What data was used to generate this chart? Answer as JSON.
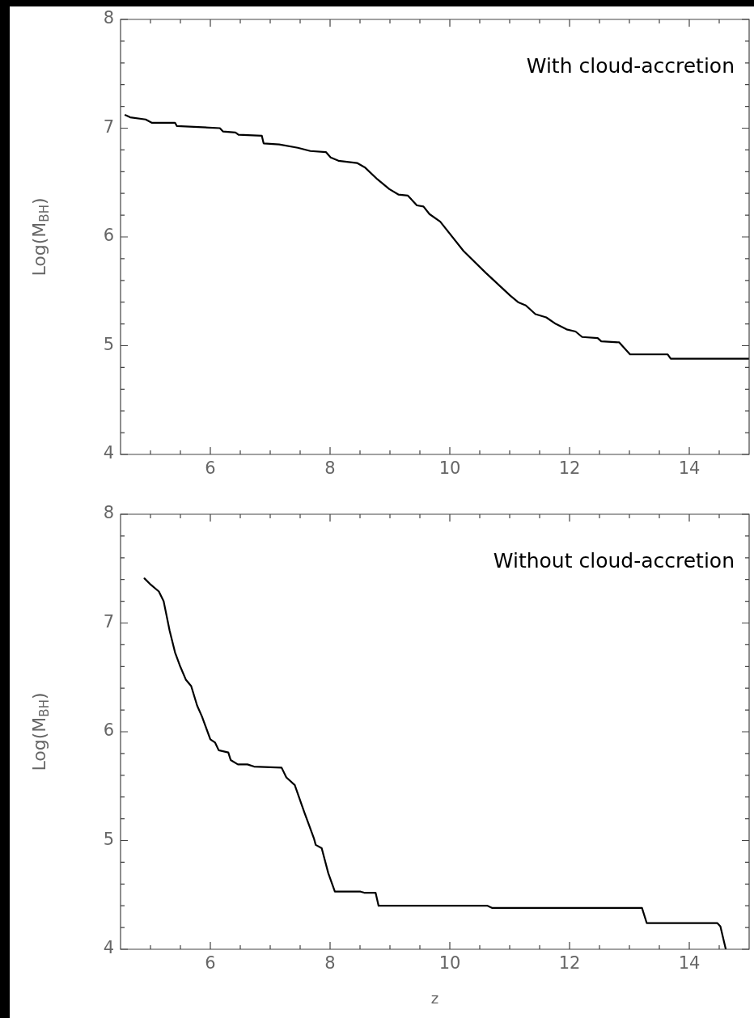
{
  "chart_data": [
    {
      "type": "line",
      "ylabel": "Log(M$_{BH}$)",
      "annotations": [
        "With cloud-accretion"
      ],
      "xlim": [
        4.5,
        15
      ],
      "ylim": [
        4,
        8
      ],
      "xticks": [
        {
          "value": 5,
          "label": null
        },
        {
          "value": 5.5,
          "label": null
        },
        6,
        {
          "value": 6.5,
          "label": null
        },
        {
          "value": 7,
          "label": null
        },
        {
          "value": 7.5,
          "label": null
        },
        8,
        {
          "value": 8.5,
          "label": null
        },
        {
          "value": 9,
          "label": null
        },
        {
          "value": 9.5,
          "label": null
        },
        10,
        {
          "value": 10.5,
          "label": null
        },
        {
          "value": 11,
          "label": null
        },
        {
          "value": 11.5,
          "label": null
        },
        12,
        {
          "value": 12.5,
          "label": null
        },
        {
          "value": 13,
          "label": null
        },
        {
          "value": 13.5,
          "label": null
        },
        14,
        {
          "value": 14.5,
          "label": null
        }
      ],
      "yticks": [
        4,
        {
          "value": 4.2,
          "label": null
        },
        {
          "value": 4.4,
          "label": null
        },
        {
          "value": 4.6,
          "label": null
        },
        {
          "value": 4.8,
          "label": null
        },
        5,
        {
          "value": 5.2,
          "label": null
        },
        {
          "value": 5.4,
          "label": null
        },
        {
          "value": 5.6,
          "label": null
        },
        {
          "value": 5.8,
          "label": null
        },
        6,
        {
          "value": 6.2,
          "label": null
        },
        {
          "value": 6.4,
          "label": null
        },
        {
          "value": 6.6,
          "label": null
        },
        {
          "value": 6.8,
          "label": null
        },
        7,
        {
          "value": 7.2,
          "label": null
        },
        {
          "value": 7.4,
          "label": null
        },
        {
          "value": 7.6,
          "label": null
        },
        {
          "value": 7.8,
          "label": null
        },
        8
      ],
      "series": [
        {
          "color": "#000000",
          "x": [
            4.58,
            4.66,
            4.92,
            5.02,
            5.41,
            5.44,
            6.16,
            6.21,
            6.42,
            6.47,
            6.86,
            6.89,
            7.15,
            7.46,
            7.67,
            7.93,
            8.01,
            8.14,
            8.45,
            8.58,
            8.79,
            8.99,
            9.14,
            9.3,
            9.45,
            9.56,
            9.66,
            9.84,
            10.23,
            10.6,
            11.01,
            11.14,
            11.27,
            11.43,
            11.61,
            11.77,
            11.95,
            12.1,
            12.21,
            12.47,
            12.53,
            12.83,
            13.01,
            13.64,
            13.69,
            15
          ],
          "values": [
            7.12,
            7.1,
            7.08,
            7.05,
            7.05,
            7.02,
            7.0,
            6.97,
            6.96,
            6.94,
            6.93,
            6.86,
            6.85,
            6.82,
            6.79,
            6.78,
            6.73,
            6.7,
            6.68,
            6.64,
            6.53,
            6.44,
            6.39,
            6.38,
            6.29,
            6.28,
            6.21,
            6.14,
            5.87,
            5.67,
            5.46,
            5.4,
            5.37,
            5.29,
            5.26,
            5.2,
            5.15,
            5.13,
            5.08,
            5.07,
            5.04,
            5.03,
            4.92,
            4.92,
            4.88,
            4.88
          ]
        }
      ],
      "grid": false,
      "legend": false,
      "marker": "none",
      "line_style": "solid"
    },
    {
      "type": "line",
      "xlabel": "z",
      "ylabel": "Log(M$_{BH}$)",
      "annotations": [
        "Without cloud-accretion"
      ],
      "xlim": [
        4.5,
        15
      ],
      "ylim": [
        4,
        8
      ],
      "xticks": [
        {
          "value": 5,
          "label": null
        },
        {
          "value": 5.5,
          "label": null
        },
        6,
        {
          "value": 6.5,
          "label": null
        },
        {
          "value": 7,
          "label": null
        },
        {
          "value": 7.5,
          "label": null
        },
        8,
        {
          "value": 8.5,
          "label": null
        },
        {
          "value": 9,
          "label": null
        },
        {
          "value": 9.5,
          "label": null
        },
        10,
        {
          "value": 10.5,
          "label": null
        },
        {
          "value": 11,
          "label": null
        },
        {
          "value": 11.5,
          "label": null
        },
        12,
        {
          "value": 12.5,
          "label": null
        },
        {
          "value": 13,
          "label": null
        },
        {
          "value": 13.5,
          "label": null
        },
        14,
        {
          "value": 14.5,
          "label": null
        }
      ],
      "yticks": [
        4,
        {
          "value": 4.2,
          "label": null
        },
        {
          "value": 4.4,
          "label": null
        },
        {
          "value": 4.6,
          "label": null
        },
        {
          "value": 4.8,
          "label": null
        },
        5,
        {
          "value": 5.2,
          "label": null
        },
        {
          "value": 5.4,
          "label": null
        },
        {
          "value": 5.6,
          "label": null
        },
        {
          "value": 5.8,
          "label": null
        },
        6,
        {
          "value": 6.2,
          "label": null
        },
        {
          "value": 6.4,
          "label": null
        },
        {
          "value": 6.6,
          "label": null
        },
        {
          "value": 6.8,
          "label": null
        },
        7,
        {
          "value": 7.2,
          "label": null
        },
        {
          "value": 7.4,
          "label": null
        },
        {
          "value": 7.6,
          "label": null
        },
        {
          "value": 7.8,
          "label": null
        },
        8
      ],
      "series": [
        {
          "color": "#000000",
          "x": [
            4.9,
            4.99,
            5.14,
            5.22,
            5.32,
            5.41,
            5.49,
            5.59,
            5.68,
            5.78,
            5.86,
            6.0,
            6.08,
            6.14,
            6.3,
            6.34,
            6.46,
            6.62,
            6.73,
            7.19,
            7.27,
            7.41,
            7.57,
            7.73,
            7.76,
            7.86,
            7.97,
            8.08,
            8.51,
            8.57,
            8.76,
            8.81,
            10.63,
            10.71,
            13.21,
            13.29,
            14.47,
            14.52,
            14.61
          ],
          "values": [
            7.41,
            7.36,
            7.29,
            7.2,
            6.93,
            6.73,
            6.61,
            6.48,
            6.42,
            6.24,
            6.14,
            5.93,
            5.9,
            5.83,
            5.81,
            5.74,
            5.7,
            5.7,
            5.68,
            5.67,
            5.58,
            5.51,
            5.26,
            5.02,
            4.96,
            4.93,
            4.7,
            4.53,
            4.53,
            4.52,
            4.52,
            4.4,
            4.4,
            4.38,
            4.38,
            4.24,
            4.24,
            4.21,
            4.0
          ]
        }
      ],
      "grid": false,
      "legend": false,
      "marker": "none",
      "line_style": "solid"
    }
  ]
}
